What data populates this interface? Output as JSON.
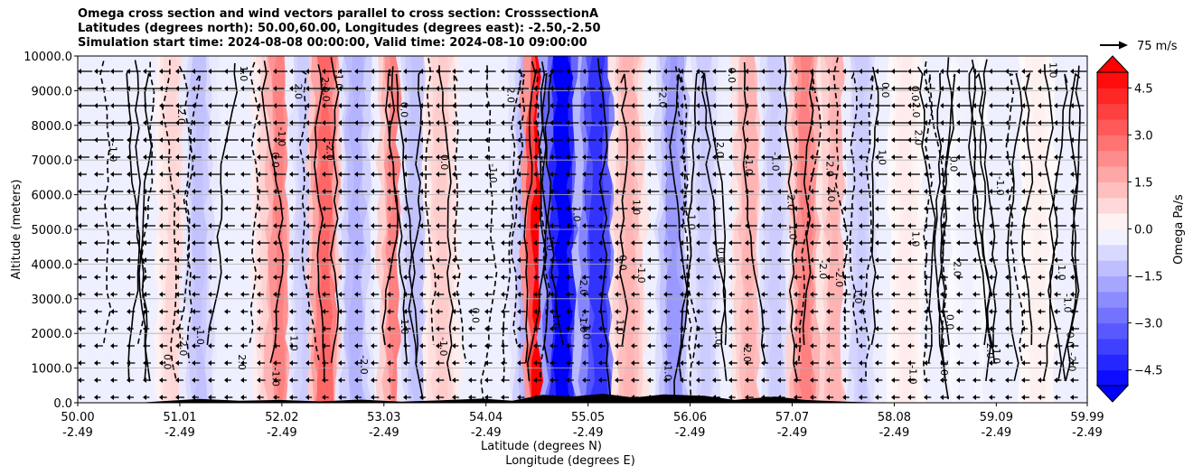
{
  "chart_data": {
    "type": "contour",
    "title_lines": [
      "Omega cross section and wind vectors parallel to cross section: CrosssectionA",
      "Latitudes (degrees north): 50.00,60.00, Longitudes (degrees east): -2.50,-2.50",
      "Simulation start time: 2024-08-08 00:00:00, Valid time: 2024-08-10 09:00:00"
    ],
    "ylabel": "Altitude (meters)",
    "xlabel_lat": "Latitude (degrees N)",
    "xlabel_lon": "Longitude (degrees E)",
    "xlim": [
      50.0,
      59.99
    ],
    "ylim": [
      0,
      10000
    ],
    "y_ticks": [
      0,
      1000,
      2000,
      3000,
      4000,
      5000,
      6000,
      7000,
      8000,
      9000,
      10000
    ],
    "y_tick_labels": [
      "0.0",
      "1000.0",
      "2000.0",
      "3000.0",
      "4000.0",
      "5000.0",
      "6000.0",
      "7000.0",
      "8000.0",
      "9000.0",
      "10000.0"
    ],
    "x_ticks": [
      50.0,
      51.01,
      52.02,
      53.03,
      54.04,
      55.05,
      56.06,
      57.07,
      58.08,
      59.09,
      59.99
    ],
    "x_tick_lat_labels": [
      "50.00",
      "51.01",
      "52.02",
      "53.03",
      "54.04",
      "55.05",
      "56.06",
      "57.07",
      "58.08",
      "59.09",
      "59.99"
    ],
    "x_tick_lon_labels": [
      "-2.49",
      "-2.49",
      "-2.49",
      "-2.49",
      "-2.49",
      "-2.49",
      "-2.49",
      "-2.49",
      "-2.49",
      "-2.49",
      "-2.49"
    ],
    "grid": "horizontal",
    "colorbar": {
      "label": "Omega Pa/s",
      "range": [
        -5.0,
        5.0
      ],
      "ticks": [
        4.5,
        3.0,
        1.5,
        0.0,
        -1.5,
        -3.0,
        -4.5
      ],
      "tick_labels": [
        "4.5",
        "3.0",
        "1.5",
        "0.0",
        "−1.5",
        "−3.0",
        "−4.5"
      ],
      "extend": "both",
      "positive_color": "#ff0000",
      "negative_color": "#0000ff"
    },
    "vector_key": "75 m/s",
    "contour_labels": [
      "0.0",
      "1.0",
      "-1.0",
      "2.0",
      "-2.0"
    ],
    "omega_features": [
      {
        "lat": 50.95,
        "omega": 0.8
      },
      {
        "lat": 51.2,
        "omega": -1.2
      },
      {
        "lat": 51.9,
        "omega": 1.0
      },
      {
        "lat": 52.0,
        "omega": 2.5
      },
      {
        "lat": 52.25,
        "omega": -1.0
      },
      {
        "lat": 52.45,
        "omega": 3.0
      },
      {
        "lat": 52.75,
        "omega": -1.5
      },
      {
        "lat": 53.15,
        "omega": 2.5
      },
      {
        "lat": 53.35,
        "omega": -1.2
      },
      {
        "lat": 53.6,
        "omega": 1.0
      },
      {
        "lat": 54.45,
        "omega": -1.5
      },
      {
        "lat": 54.63,
        "omega": 6.0
      },
      {
        "lat": 54.8,
        "omega": -5.0
      },
      {
        "lat": 55.15,
        "omega": -4.0
      },
      {
        "lat": 55.45,
        "omega": 1.5
      },
      {
        "lat": 55.9,
        "omega": -2.0
      },
      {
        "lat": 56.2,
        "omega": -1.0
      },
      {
        "lat": 56.65,
        "omega": 1.5
      },
      {
        "lat": 56.9,
        "omega": -1.0
      },
      {
        "lat": 57.2,
        "omega": 2.5
      },
      {
        "lat": 57.5,
        "omega": 1.5
      },
      {
        "lat": 57.75,
        "omega": -1.0
      },
      {
        "lat": 58.2,
        "omega": 0.4
      },
      {
        "lat": 58.8,
        "omega": -0.3
      },
      {
        "lat": 59.5,
        "omega": 0.3
      }
    ]
  }
}
